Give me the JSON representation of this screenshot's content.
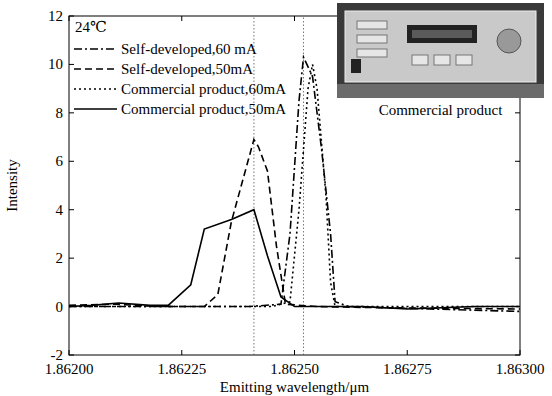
{
  "chart_data": {
    "type": "line",
    "x_label": "Emitting wavelength/μm",
    "y_label": "Intensity",
    "xlim": [
      1.862,
      1.863
    ],
    "xticks": [
      {
        "value": 1.862,
        "label": "1.86200"
      },
      {
        "value": 1.86225,
        "label": "1.86225"
      },
      {
        "value": 1.8625,
        "label": "1.86250"
      },
      {
        "value": 1.86275,
        "label": "1.86275"
      },
      {
        "value": 1.863,
        "label": "1.86300"
      }
    ],
    "ylim": [
      -2,
      12
    ],
    "yticks": [
      -2,
      0,
      2,
      4,
      6,
      8,
      10,
      12
    ],
    "grid": false,
    "legend": "upper left",
    "annotations": [
      {
        "text": "24℃"
      },
      {
        "text": "Commercial product"
      }
    ],
    "vertical_lines": [
      1.86241,
      1.86252
    ],
    "series": [
      {
        "name": "Self-developed,60 mA",
        "color": "#000000",
        "line_style": "dash-dot",
        "x": [
          1.862,
          1.8624,
          1.86247,
          1.86249,
          1.86251,
          1.86252,
          1.86254,
          1.86256,
          1.86258,
          1.86259,
          1.86262,
          1.8628,
          1.863
        ],
        "values": [
          0,
          0,
          0.1,
          3.0,
          8.5,
          10.3,
          9.5,
          6.5,
          3.0,
          0.2,
          0,
          -0.1,
          -0.2
        ]
      },
      {
        "name": "Self-developed,50mA",
        "color": "#000000",
        "line_style": "dashed",
        "x": [
          1.862,
          1.8621,
          1.8622,
          1.8623,
          1.86233,
          1.86236,
          1.86241,
          1.86242,
          1.86244,
          1.86246,
          1.86248,
          1.86255,
          1.8627,
          1.863
        ],
        "values": [
          0.05,
          0.1,
          0,
          0,
          0.5,
          3.5,
          6.9,
          6.6,
          5.6,
          2.5,
          0.1,
          0,
          -0.05,
          -0.1
        ]
      },
      {
        "name": "Commercial product,60mA",
        "color": "#000000",
        "line_style": "dotted",
        "x": [
          1.862,
          1.86245,
          1.86249,
          1.86251,
          1.86253,
          1.86254,
          1.86255,
          1.86257,
          1.86258,
          1.86259,
          1.863
        ],
        "values": [
          0,
          0,
          0.2,
          4.0,
          9.0,
          10.0,
          9.0,
          4.5,
          1.0,
          0,
          0
        ]
      },
      {
        "name": "Commercial product,50mA",
        "color": "#000000",
        "line_style": "solid",
        "x": [
          1.862,
          1.86205,
          1.86211,
          1.86218,
          1.86222,
          1.86227,
          1.8623,
          1.86236,
          1.86241,
          1.86244,
          1.86247,
          1.8625,
          1.86265,
          1.86275,
          1.8629,
          1.863
        ],
        "values": [
          0,
          0.05,
          0.15,
          0.05,
          0.05,
          0.9,
          3.2,
          3.6,
          4.0,
          2.1,
          0.4,
          0,
          0,
          -0.1,
          0,
          0
        ]
      }
    ]
  }
}
